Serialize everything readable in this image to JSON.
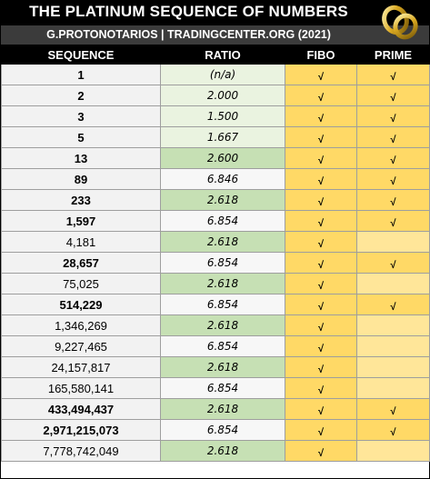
{
  "header": {
    "title": "THE PLATINUM  SEQUENCE OF NUMBERS",
    "subtitle": "G.PROTONOTARIOS | TRADINGCENTER.ORG (2021)",
    "logo_icon": "gold-rings-icon"
  },
  "columns": [
    "SEQUENCE",
    "RATIO",
    "FIBO",
    "PRIME"
  ],
  "check_mark": "√",
  "rows": [
    {
      "seq": "1",
      "ratio": "(n/a)",
      "fibo": true,
      "prime": true
    },
    {
      "seq": "2",
      "ratio": "2.000",
      "fibo": true,
      "prime": true
    },
    {
      "seq": "3",
      "ratio": "1.500",
      "fibo": true,
      "prime": true
    },
    {
      "seq": "5",
      "ratio": "1.667",
      "fibo": true,
      "prime": true
    },
    {
      "seq": "13",
      "ratio": "2.600",
      "fibo": true,
      "prime": true
    },
    {
      "seq": "89",
      "ratio": "6.846",
      "fibo": true,
      "prime": true
    },
    {
      "seq": "233",
      "ratio": "2.618",
      "fibo": true,
      "prime": true
    },
    {
      "seq": "1,597",
      "ratio": "6.854",
      "fibo": true,
      "prime": true
    },
    {
      "seq": "4,181",
      "ratio": "2.618",
      "fibo": true,
      "prime": false
    },
    {
      "seq": "28,657",
      "ratio": "6.854",
      "fibo": true,
      "prime": true
    },
    {
      "seq": "75,025",
      "ratio": "2.618",
      "fibo": true,
      "prime": false
    },
    {
      "seq": "514,229",
      "ratio": "6.854",
      "fibo": true,
      "prime": true
    },
    {
      "seq": "1,346,269",
      "ratio": "2.618",
      "fibo": true,
      "prime": false
    },
    {
      "seq": "9,227,465",
      "ratio": "6.854",
      "fibo": true,
      "prime": false
    },
    {
      "seq": "24,157,817",
      "ratio": "2.618",
      "fibo": true,
      "prime": false
    },
    {
      "seq": "165,580,141",
      "ratio": "6.854",
      "fibo": true,
      "prime": false
    },
    {
      "seq": "433,494,437",
      "ratio": "2.618",
      "fibo": true,
      "prime": true
    },
    {
      "seq": "2,971,215,073",
      "ratio": "6.854",
      "fibo": true,
      "prime": true
    },
    {
      "seq": "7,778,742,049",
      "ratio": "2.618",
      "fibo": true,
      "prime": false
    }
  ]
}
